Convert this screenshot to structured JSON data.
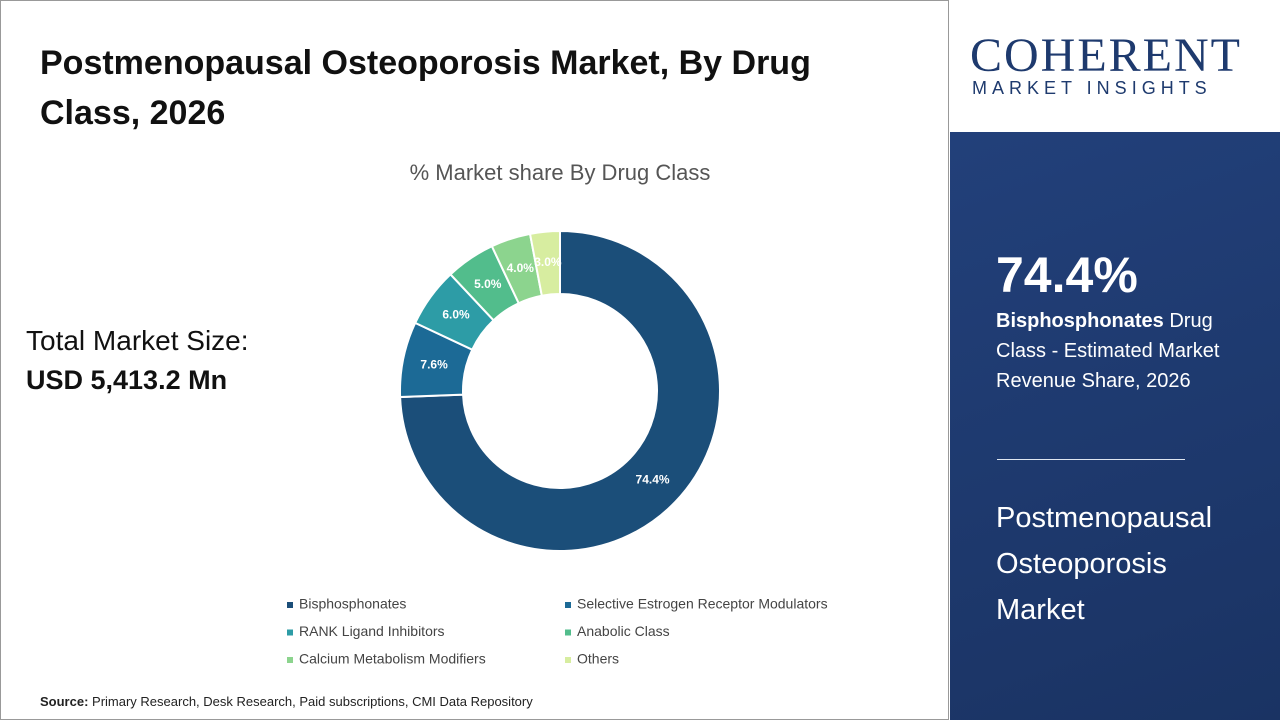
{
  "header": {
    "title": "Postmenopausal Osteoporosis Market, By Drug Class, 2026"
  },
  "market_size": {
    "label": "Total Market Size:",
    "value": "USD 5,413.2 Mn"
  },
  "chart_data": {
    "type": "pie",
    "title": "% Market share By Drug Class",
    "categories": [
      "Bisphosphonates",
      "Selective Estrogen Receptor Modulators",
      "RANK Ligand Inhibitors",
      "Anabolic Class",
      "Calcium Metabolism Modifiers",
      "Others"
    ],
    "values": [
      74.4,
      7.6,
      6.0,
      5.0,
      4.0,
      3.0
    ],
    "value_labels": [
      "74.4%",
      "7.6%",
      "6.0%",
      "5.0%",
      "4.0%",
      "3.0%"
    ],
    "colors": [
      "#1b4e79",
      "#1c6a96",
      "#2d9ca6",
      "#52bd8c",
      "#8cd48e",
      "#d7eda0"
    ]
  },
  "logo": {
    "name": "COHERENT",
    "tagline": "MARKET INSIGHTS"
  },
  "highlight": {
    "value": "74.4%",
    "segment": "Bisphosphonates",
    "text": "Drug Class - Estimated Market Revenue Share, 2026",
    "market": "Postmenopausal Osteoporosis Market"
  },
  "source": {
    "label": "Source:",
    "text": "Primary Research, Desk Research, Paid subscriptions, CMI Data Repository"
  }
}
